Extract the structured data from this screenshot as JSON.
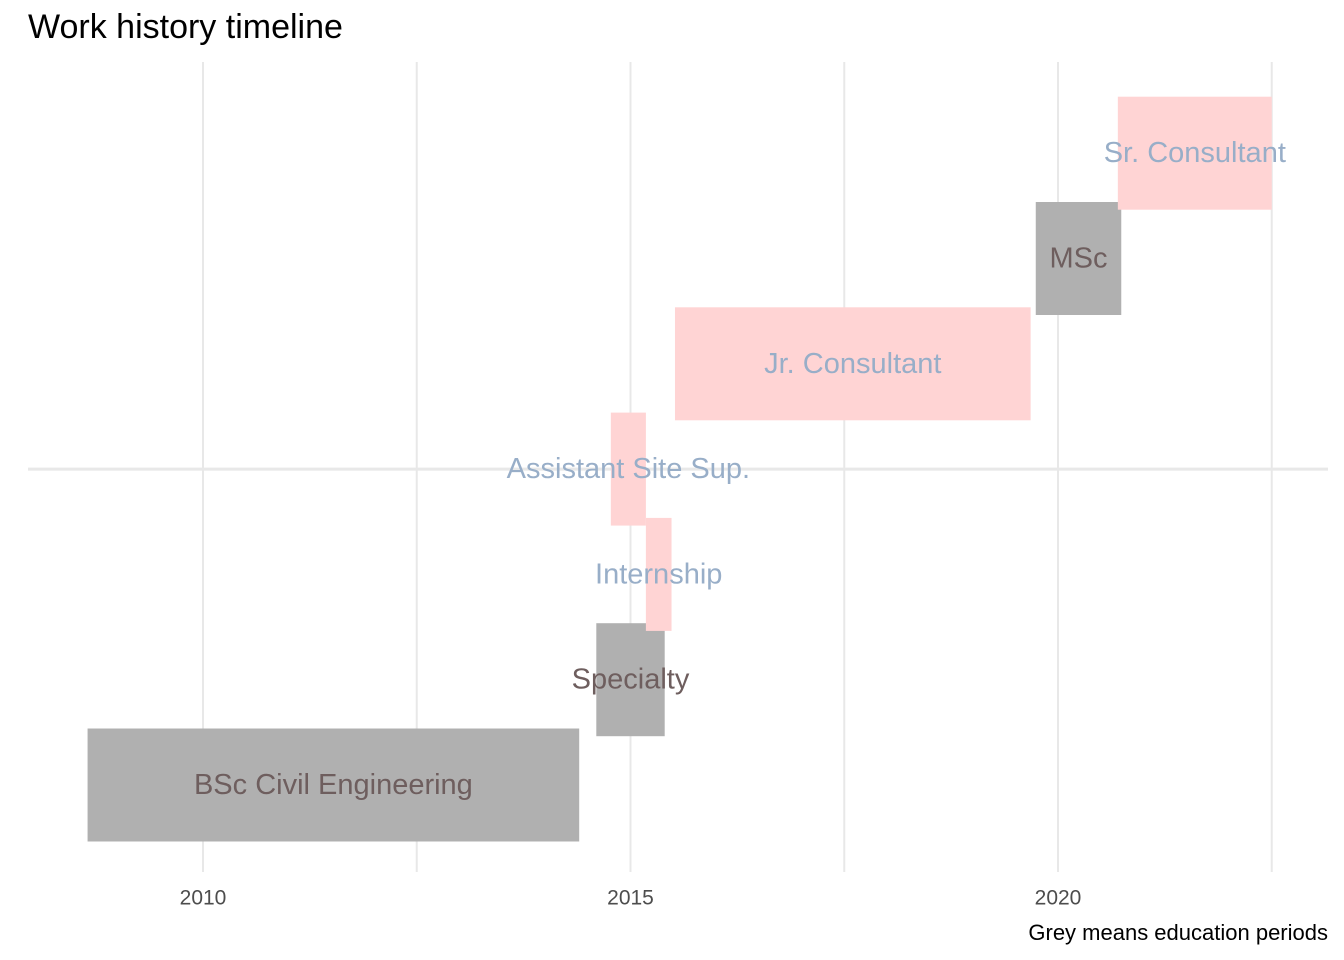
{
  "chart_data": {
    "type": "bar",
    "orientation": "horizontal-timeline",
    "title": "Work history timeline",
    "caption": "Grey means education periods",
    "xlabel": "",
    "ylabel": "",
    "x_ticks": [
      2010,
      2015,
      2020
    ],
    "xlim": [
      2008.0,
      2023.6
    ],
    "grid": true,
    "colors": {
      "education": "#b0b0b0",
      "work": "#ffd4d4",
      "education_text": "#6e5e5e",
      "work_text": "#98aec8",
      "grid": "#e8e8e8"
    },
    "items": [
      {
        "label": "BSc Civil Engineering",
        "start": 2008.65,
        "end": 2014.4,
        "category": "education"
      },
      {
        "label": "Specialty",
        "start": 2014.6,
        "end": 2015.4,
        "category": "education"
      },
      {
        "label": "Internship",
        "start": 2015.18,
        "end": 2015.48,
        "category": "work"
      },
      {
        "label": "Assistant Site Sup.",
        "start": 2014.77,
        "end": 2015.18,
        "category": "work"
      },
      {
        "label": "Jr. Consultant",
        "start": 2015.52,
        "end": 2019.68,
        "category": "work"
      },
      {
        "label": "MSc",
        "start": 2019.74,
        "end": 2020.74,
        "category": "education"
      },
      {
        "label": "Sr. Consultant",
        "start": 2020.7,
        "end": 2022.5,
        "category": "work"
      }
    ]
  }
}
